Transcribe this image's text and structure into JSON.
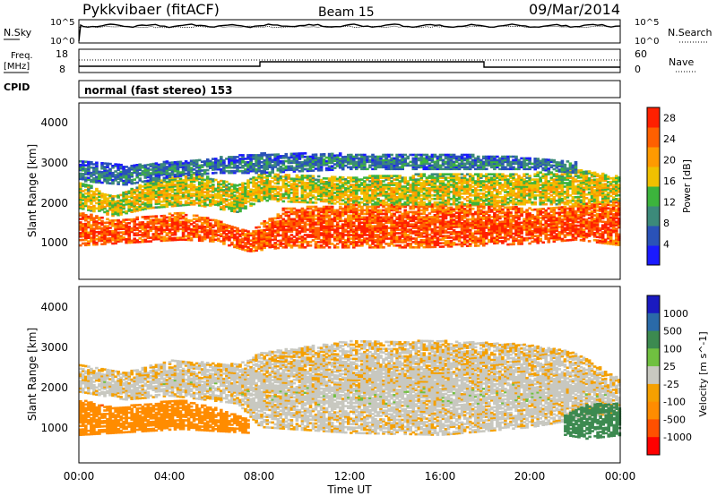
{
  "header": {
    "station": "Pykkvibaer (fitACF)",
    "beam": "Beam 15",
    "date": "09/Mar/2014"
  },
  "noise_panel": {
    "left_label": "N.Sky",
    "right_label": "N.Search",
    "left_ticks": [
      "10^5",
      "10^0"
    ],
    "right_ticks": [
      "10^5",
      "10^0"
    ]
  },
  "freq_panel": {
    "left_label_1": "Freq.",
    "left_label_2": "[MHz]",
    "right_label": "Nave",
    "left_ticks": [
      "18",
      "8"
    ],
    "right_ticks": [
      "60",
      "0"
    ]
  },
  "cpid_panel": {
    "label": "CPID",
    "text": "normal (fast stereo) 153"
  },
  "axes": {
    "ylabel": "Slant Range [km]",
    "xlabel": "Time UT",
    "y_ticks": [
      "1000",
      "2000",
      "3000",
      "4000"
    ],
    "x_ticks": [
      "00:00",
      "04:00",
      "08:00",
      "12:00",
      "16:00",
      "20:00",
      "00:00"
    ]
  },
  "colors": {
    "power_scale": [
      "#1a1aff",
      "#2a52b8",
      "#3c8a7a",
      "#3cb43c",
      "#f0c000",
      "#ff9a00",
      "#ff6000",
      "#ff2000"
    ],
    "velocity_scale": [
      "#ff0000",
      "#ff5000",
      "#ff8c00",
      "#f5a000",
      "#c8c8c0",
      "#70c040",
      "#3c8a50",
      "#2a6aa8",
      "#1a1ac0"
    ],
    "ground_scatter": "#c8c8c0"
  },
  "chart_data": [
    {
      "type": "heatmap",
      "title": "",
      "xlabel": "",
      "ylabel": "Slant Range [km]",
      "xlim": [
        0,
        24
      ],
      "ylim": [
        0,
        4500
      ],
      "colorbar_label": "Power [dB]",
      "colorbar_ticks": [
        "4",
        "8",
        "12",
        "16",
        "20",
        "24",
        "28"
      ],
      "colorbar_range": [
        0,
        30
      ],
      "bands": [
        {
          "t": [
            0,
            1.5,
            3,
            4.5,
            6,
            7.5,
            9,
            12,
            15,
            18,
            20,
            22,
            24
          ],
          "r_low": [
            850,
            900,
            950,
            1000,
            950,
            700,
            800,
            800,
            800,
            850,
            900,
            1000,
            850
          ],
          "r_high": [
            1700,
            1500,
            1600,
            1700,
            1500,
            1200,
            1800,
            1900,
            1900,
            1900,
            1800,
            1900,
            2000
          ],
          "level": 27
        },
        {
          "t": [
            0,
            1.5,
            3,
            5,
            7,
            8,
            12,
            16,
            20,
            22,
            24
          ],
          "r_low": [
            1800,
            1600,
            1800,
            1900,
            1700,
            2000,
            1900,
            1900,
            1900,
            1900,
            2000
          ],
          "r_high": [
            2500,
            2100,
            2500,
            2700,
            2400,
            2700,
            2600,
            2700,
            2700,
            2800,
            2600
          ],
          "level": 18
        },
        {
          "t": [
            0,
            2,
            4,
            6,
            8,
            12,
            16,
            20,
            22
          ],
          "r_low": [
            2500,
            2400,
            2600,
            2700,
            2700,
            2800,
            2800,
            2800,
            2700
          ],
          "r_high": [
            3000,
            2900,
            3000,
            3100,
            3200,
            3200,
            3200,
            3100,
            3000
          ],
          "level": 9
        }
      ]
    },
    {
      "type": "heatmap",
      "title": "",
      "xlabel": "Time UT",
      "ylabel": "Slant Range [km]",
      "xlim": [
        0,
        24
      ],
      "ylim": [
        0,
        4500
      ],
      "colorbar_label": "Velocity [m s^-1]",
      "colorbar_ticks": [
        "1000",
        "500",
        "100",
        "25",
        "-25",
        "-100",
        "-500",
        "-1000"
      ],
      "bands": [
        {
          "t": [
            0,
            1.5,
            3,
            4.5,
            6,
            7.5
          ],
          "r_low": [
            700,
            750,
            800,
            850,
            800,
            750
          ],
          "r_high": [
            1600,
            1400,
            1500,
            1600,
            1400,
            1100
          ],
          "level": -150
        },
        {
          "t": [
            0,
            2,
            4,
            7,
            8,
            12,
            16,
            20,
            22,
            24
          ],
          "r_low": [
            1800,
            1600,
            1700,
            1500,
            900,
            750,
            700,
            900,
            1100,
            1300
          ],
          "r_high": [
            2500,
            2300,
            2600,
            2500,
            2800,
            3100,
            3100,
            3000,
            2800,
            2100
          ],
          "level": 0
        },
        {
          "t": [
            21.5,
            22.5,
            24
          ],
          "r_low": [
            700,
            600,
            700
          ],
          "r_high": [
            1200,
            1500,
            1500
          ],
          "level": 200
        }
      ]
    }
  ]
}
